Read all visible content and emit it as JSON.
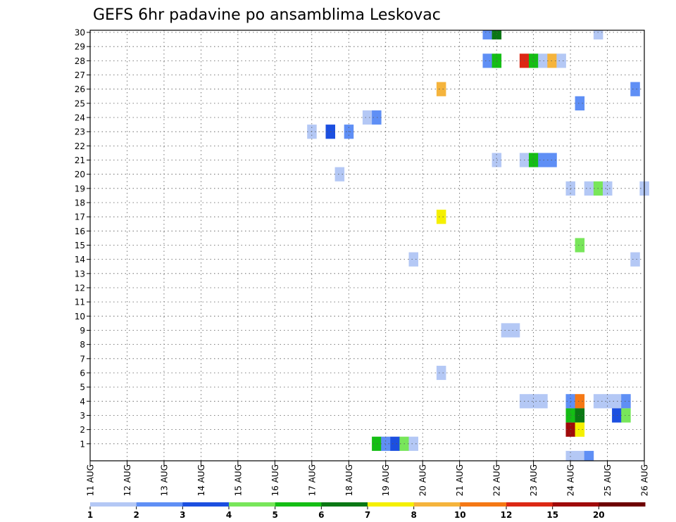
{
  "chart_data": {
    "type": "heatmap",
    "title": "GEFS 6hr padavine po ansamblima Leskovac",
    "xlabel": "",
    "ylabel": "",
    "x_tick_labels": [
      "11 AUG",
      "12 AUG",
      "13 AUG",
      "14 AUG",
      "15 AUG",
      "16 AUG",
      "17 AUG",
      "18 AUG",
      "19 AUG",
      "20 AUG",
      "21 AUG",
      "22 AUG",
      "23 AUG",
      "24 AUG",
      "25 AUG",
      "26 AUG"
    ],
    "y_tick_labels": [
      "1",
      "2",
      "3",
      "4",
      "5",
      "6",
      "7",
      "8",
      "9",
      "10",
      "11",
      "12",
      "13",
      "14",
      "15",
      "16",
      "17",
      "18",
      "19",
      "20",
      "21",
      "22",
      "23",
      "24",
      "25",
      "26",
      "27",
      "28",
      "29",
      "30"
    ],
    "x_range_days": [
      0,
      15
    ],
    "y_range": [
      0,
      30
    ],
    "grid": true,
    "legend_placement": "bottom",
    "colorbar": {
      "labels": [
        "1",
        "2",
        "3",
        "4",
        "5",
        "6",
        "7",
        "8",
        "10",
        "12",
        "15",
        "20"
      ],
      "colors": [
        "#b4c8f5",
        "#5f8ff5",
        "#1c4fe0",
        "#78e65a",
        "#14be14",
        "#0a7814",
        "#f5f000",
        "#f5b43c",
        "#f57814",
        "#dc2814",
        "#a00a0a",
        "#6e0000"
      ]
    },
    "cells": [
      {
        "day": 10.75,
        "member": 30,
        "c": 1
      },
      {
        "day": 11.0,
        "member": 30,
        "c": 5
      },
      {
        "day": 13.75,
        "member": 30,
        "c": 0
      },
      {
        "day": 10.75,
        "member": 28,
        "c": 1
      },
      {
        "day": 11.0,
        "member": 28,
        "c": 4
      },
      {
        "day": 11.75,
        "member": 28,
        "c": 9
      },
      {
        "day": 12.0,
        "member": 28,
        "c": 4
      },
      {
        "day": 12.25,
        "member": 28,
        "c": 0
      },
      {
        "day": 12.5,
        "member": 28,
        "c": 7
      },
      {
        "day": 12.75,
        "member": 28,
        "c": 0
      },
      {
        "day": 9.5,
        "member": 26,
        "c": 7
      },
      {
        "day": 14.75,
        "member": 26,
        "c": 1
      },
      {
        "day": 13.25,
        "member": 25,
        "c": 1
      },
      {
        "day": 7.5,
        "member": 24,
        "c": 0
      },
      {
        "day": 7.75,
        "member": 24,
        "c": 1
      },
      {
        "day": 6.0,
        "member": 23,
        "c": 0
      },
      {
        "day": 6.5,
        "member": 23,
        "c": 2
      },
      {
        "day": 7.0,
        "member": 23,
        "c": 1
      },
      {
        "day": 11.0,
        "member": 21,
        "c": 0
      },
      {
        "day": 11.75,
        "member": 21,
        "c": 0
      },
      {
        "day": 12.0,
        "member": 21,
        "c": 4
      },
      {
        "day": 12.25,
        "member": 21,
        "c": 1
      },
      {
        "day": 12.5,
        "member": 21,
        "c": 1
      },
      {
        "day": 6.75,
        "member": 20,
        "c": 0
      },
      {
        "day": 13.0,
        "member": 19,
        "c": 0
      },
      {
        "day": 13.5,
        "member": 19,
        "c": 0
      },
      {
        "day": 13.75,
        "member": 19,
        "c": 3
      },
      {
        "day": 14.0,
        "member": 19,
        "c": 0
      },
      {
        "day": 15.0,
        "member": 19,
        "c": 0
      },
      {
        "day": 9.5,
        "member": 17,
        "c": 6
      },
      {
        "day": 13.25,
        "member": 15,
        "c": 3
      },
      {
        "day": 8.75,
        "member": 14,
        "c": 0
      },
      {
        "day": 14.75,
        "member": 14,
        "c": 0
      },
      {
        "day": 11.25,
        "member": 9,
        "c": 0
      },
      {
        "day": 11.5,
        "member": 9,
        "c": 0
      },
      {
        "day": 9.5,
        "member": 6,
        "c": 0
      },
      {
        "day": 11.75,
        "member": 4,
        "c": 0
      },
      {
        "day": 12.0,
        "member": 4,
        "c": 0
      },
      {
        "day": 12.25,
        "member": 4,
        "c": 0
      },
      {
        "day": 13.0,
        "member": 4,
        "c": 1
      },
      {
        "day": 13.25,
        "member": 4,
        "c": 8
      },
      {
        "day": 13.75,
        "member": 4,
        "c": 0
      },
      {
        "day": 14.0,
        "member": 4,
        "c": 0
      },
      {
        "day": 14.25,
        "member": 4,
        "c": 0
      },
      {
        "day": 14.5,
        "member": 4,
        "c": 1
      },
      {
        "day": 13.0,
        "member": 3,
        "c": 4
      },
      {
        "day": 13.25,
        "member": 3,
        "c": 5
      },
      {
        "day": 14.25,
        "member": 3,
        "c": 2
      },
      {
        "day": 14.5,
        "member": 3,
        "c": 3
      },
      {
        "day": 13.0,
        "member": 2,
        "c": 10
      },
      {
        "day": 13.25,
        "member": 2,
        "c": 6
      },
      {
        "day": 7.75,
        "member": 1,
        "c": 4
      },
      {
        "day": 8.0,
        "member": 1,
        "c": 1
      },
      {
        "day": 8.25,
        "member": 1,
        "c": 2
      },
      {
        "day": 8.5,
        "member": 1,
        "c": 3
      },
      {
        "day": 8.75,
        "member": 1,
        "c": 0
      },
      {
        "day": 13.0,
        "member": 0,
        "c": 0
      },
      {
        "day": 13.25,
        "member": 0,
        "c": 0
      },
      {
        "day": 13.5,
        "member": 0,
        "c": 1
      }
    ]
  }
}
